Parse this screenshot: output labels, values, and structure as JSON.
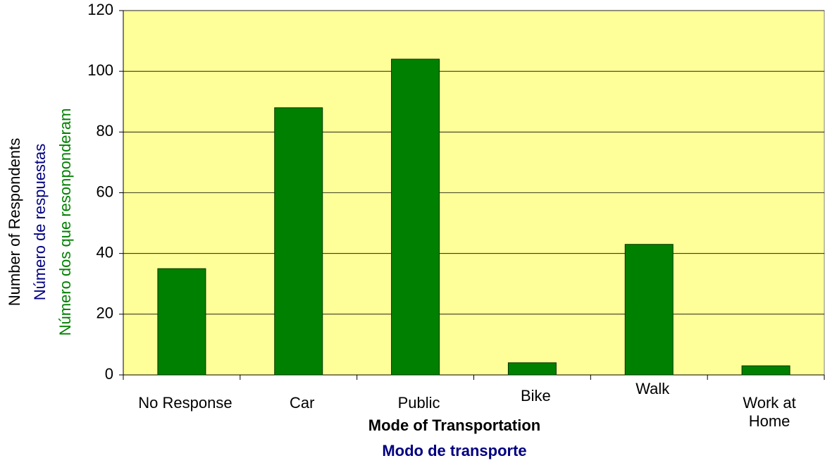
{
  "chart_data": {
    "type": "bar",
    "categories": [
      "No Response",
      "Car",
      "Public",
      "Bike",
      "Walk",
      "Work at Home"
    ],
    "values": [
      35,
      88,
      104,
      4,
      43,
      3
    ],
    "color": "#008000",
    "plot_background": "#ffff99",
    "ylim": [
      0,
      120
    ],
    "yticks": [
      0,
      20,
      40,
      60,
      80,
      100,
      120
    ],
    "grid": true,
    "x_label": [
      "Mode of Transportation",
      "Modo de transporte"
    ],
    "y_label": [
      "Number of Respondents",
      "Número de respuestas",
      "Número dos que resonponderam"
    ]
  }
}
